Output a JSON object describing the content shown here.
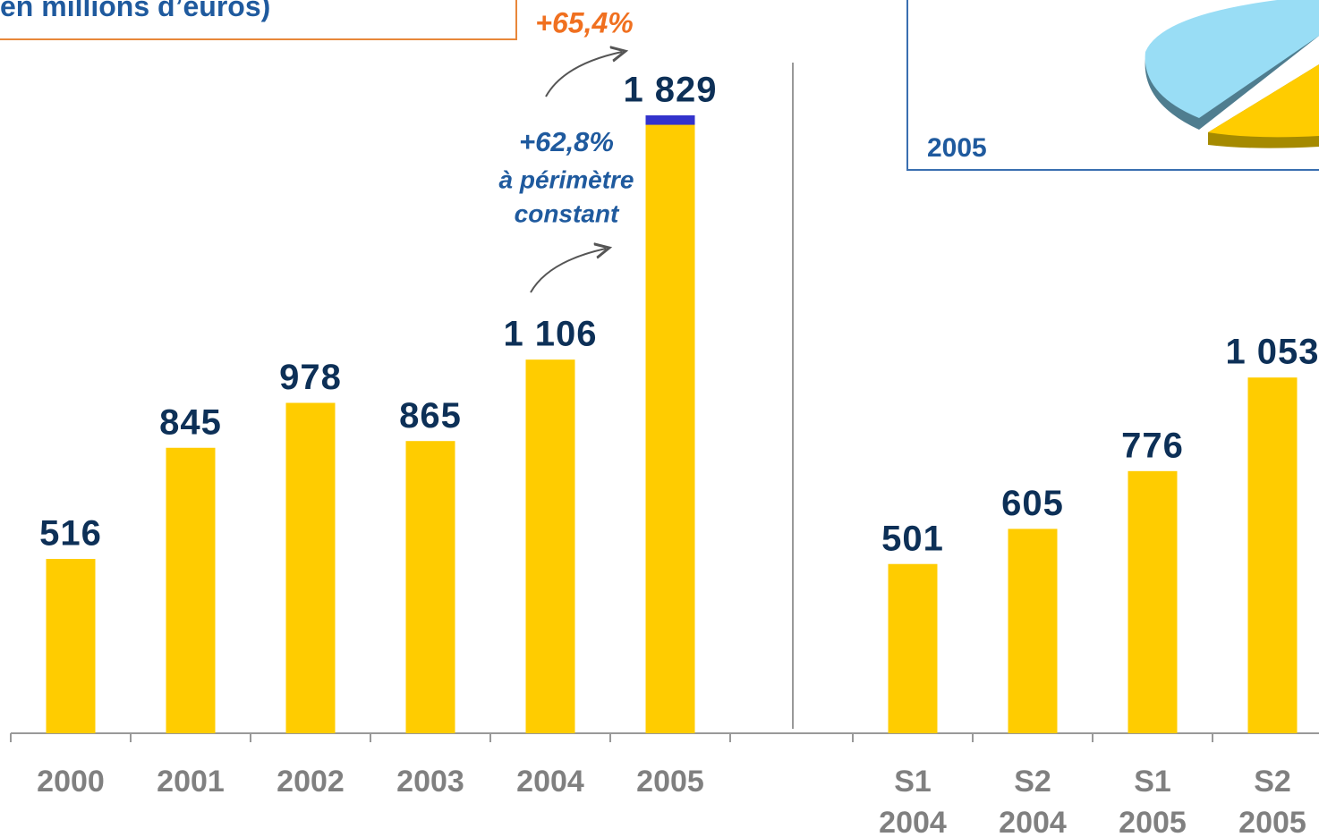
{
  "title": "en millions d’euros)",
  "inset": {
    "label": "2005"
  },
  "chart_data": [
    {
      "type": "bar",
      "categories": [
        "2000",
        "2001",
        "2002",
        "2003",
        "2004",
        "2005"
      ],
      "values": [
        516,
        845,
        978,
        865,
        1106,
        1829
      ],
      "value_labels": [
        "516",
        "845",
        "978",
        "865",
        "1 106",
        "1 829"
      ],
      "scope_effect": 28,
      "scope_color": "#3333cc",
      "color": "#ffcc00",
      "ylim": [
        0,
        2000
      ],
      "annotations": [
        "+65,4%",
        "+62,8%",
        "à périmètre",
        "constant"
      ]
    },
    {
      "type": "bar",
      "categories": [
        [
          "S1",
          "2004"
        ],
        [
          "S2",
          "2004"
        ],
        [
          "S1",
          "2005"
        ],
        [
          "S2",
          "2005"
        ]
      ],
      "values": [
        501,
        605,
        776,
        1053
      ],
      "value_labels": [
        "501",
        "605",
        "776",
        "1 053"
      ],
      "color": "#ffcc00",
      "ylim": [
        0,
        2000
      ]
    }
  ]
}
